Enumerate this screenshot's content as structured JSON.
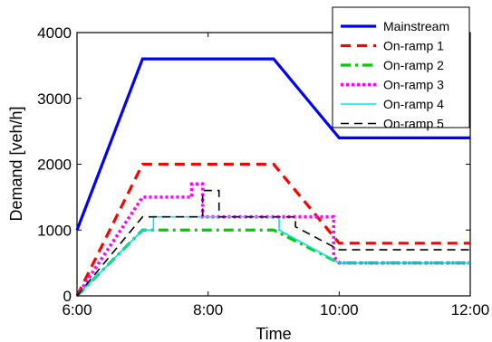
{
  "chart_data": {
    "type": "line",
    "title": "",
    "xlabel": "Time",
    "ylabel": "Demand [veh/h]",
    "xlim": [
      "6:00",
      "12:00"
    ],
    "ylim": [
      0,
      4000
    ],
    "x_ticks": [
      "6:00",
      "8:00",
      "10:00",
      "12:00"
    ],
    "y_ticks": [
      "0",
      "1000",
      "2000",
      "3000",
      "4000"
    ],
    "grid": false,
    "legend_position": "top-right",
    "series": [
      {
        "name": "Mainstream",
        "color": "#0000ff",
        "style": "solid",
        "points": [
          [
            "6:00",
            1000
          ],
          [
            "7:00",
            3600
          ],
          [
            "9:00",
            3600
          ],
          [
            "10:00",
            2400
          ],
          [
            "12:00",
            2400
          ]
        ]
      },
      {
        "name": "On-ramp 1",
        "color": "#ff0000",
        "style": "dashed",
        "points": [
          [
            "6:00",
            0
          ],
          [
            "7:00",
            2000
          ],
          [
            "9:00",
            2000
          ],
          [
            "10:00",
            800
          ],
          [
            "12:00",
            800
          ]
        ]
      },
      {
        "name": "On-ramp 2",
        "color": "#00cc00",
        "style": "dashdot",
        "points": [
          [
            "6:00",
            0
          ],
          [
            "7:00",
            1000
          ],
          [
            "9:00",
            1000
          ],
          [
            "10:00",
            500
          ],
          [
            "12:00",
            500
          ]
        ]
      },
      {
        "name": "On-ramp 3",
        "color": "#ff00ff",
        "style": "dotted",
        "points": [
          [
            "6:00",
            0
          ],
          [
            "7:00",
            1500
          ],
          [
            "7:45",
            1500
          ],
          [
            "7:45",
            1700
          ],
          [
            "7:55",
            1700
          ],
          [
            "7:55",
            1200
          ],
          [
            "9:55",
            1200
          ],
          [
            "9:55",
            600
          ],
          [
            "10:00",
            500
          ],
          [
            "12:00",
            500
          ]
        ]
      },
      {
        "name": "On-ramp 4",
        "color": "#00e5e5",
        "style": "solid-thin",
        "points": [
          [
            "6:00",
            0
          ],
          [
            "7:00",
            1000
          ],
          [
            "7:10",
            1000
          ],
          [
            "7:10",
            1200
          ],
          [
            "9:05",
            1200
          ],
          [
            "9:05",
            1000
          ],
          [
            "10:00",
            500
          ],
          [
            "12:00",
            500
          ]
        ]
      },
      {
        "name": "On-ramp 5",
        "color": "#000000",
        "style": "dashed-thin",
        "points": [
          [
            "6:00",
            0
          ],
          [
            "7:00",
            1200
          ],
          [
            "7:55",
            1200
          ],
          [
            "7:55",
            1600
          ],
          [
            "8:10",
            1600
          ],
          [
            "8:10",
            1200
          ],
          [
            "9:20",
            1200
          ],
          [
            "9:20",
            1050
          ],
          [
            "10:00",
            700
          ],
          [
            "12:00",
            700
          ]
        ]
      }
    ]
  }
}
